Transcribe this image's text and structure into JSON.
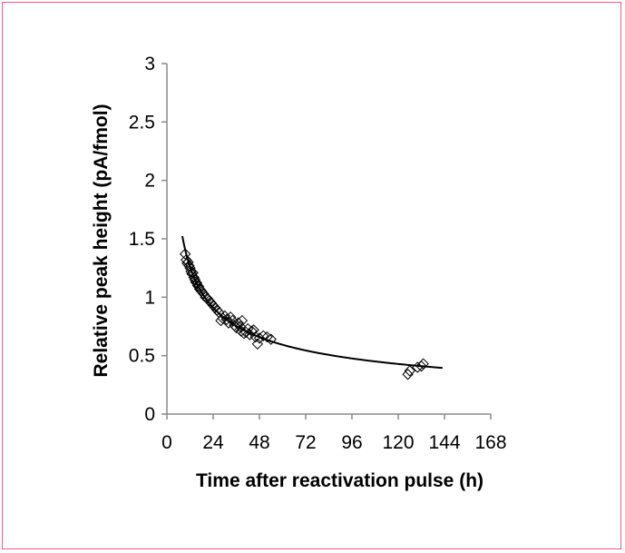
{
  "chart_data": {
    "type": "scatter",
    "xlabel": "Time after reactivation pulse (h)",
    "ylabel": "Relative peak height (pA/fmol)",
    "xlim": [
      0,
      168
    ],
    "ylim": [
      0,
      3
    ],
    "x_ticks": [
      "0",
      "24",
      "48",
      "72",
      "96",
      "120",
      "144",
      "168"
    ],
    "y_ticks": [
      "0",
      "0.5",
      "1",
      "1.5",
      "2",
      "2.5",
      "3"
    ],
    "grid": false,
    "legend": "none",
    "colors": {
      "axis": "#888888",
      "marker": "#000000",
      "fit": "#000000",
      "border": "#d46a7e"
    },
    "series": [
      {
        "kind": "scatter",
        "marker": "open-diamond",
        "points": [
          [
            9.5,
            1.37
          ],
          [
            10,
            1.32
          ],
          [
            10.5,
            1.29
          ],
          [
            11,
            1.3
          ],
          [
            11.5,
            1.27
          ],
          [
            12,
            1.25
          ],
          [
            12.5,
            1.22
          ],
          [
            13,
            1.2
          ],
          [
            13.5,
            1.21
          ],
          [
            14,
            1.17
          ],
          [
            14.5,
            1.15
          ],
          [
            15,
            1.13
          ],
          [
            15.5,
            1.12
          ],
          [
            16,
            1.1
          ],
          [
            16.5,
            1.09
          ],
          [
            17,
            1.07
          ],
          [
            17.5,
            1.06
          ],
          [
            18,
            1.05
          ],
          [
            19,
            1.03
          ],
          [
            20,
            1.0
          ],
          [
            21,
            0.99
          ],
          [
            22,
            0.97
          ],
          [
            23,
            0.95
          ],
          [
            24,
            0.93
          ],
          [
            25,
            0.91
          ],
          [
            26,
            0.89
          ],
          [
            27,
            0.87
          ],
          [
            28,
            0.8
          ],
          [
            29,
            0.82
          ],
          [
            30,
            0.84
          ],
          [
            31,
            0.81
          ],
          [
            32,
            0.78
          ],
          [
            33,
            0.83
          ],
          [
            34,
            0.8
          ],
          [
            35,
            0.76
          ],
          [
            36,
            0.74
          ],
          [
            37,
            0.78
          ],
          [
            38,
            0.75
          ],
          [
            38.5,
            0.71
          ],
          [
            39,
            0.8
          ],
          [
            40,
            0.69
          ],
          [
            41,
            0.7
          ],
          [
            42,
            0.73
          ],
          [
            43,
            0.68
          ],
          [
            44,
            0.71
          ],
          [
            45,
            0.72
          ],
          [
            46,
            0.66
          ],
          [
            47,
            0.6
          ],
          [
            48,
            0.65
          ],
          [
            50,
            0.67
          ],
          [
            52,
            0.66
          ],
          [
            54,
            0.64
          ],
          [
            125,
            0.34
          ],
          [
            126,
            0.37
          ],
          [
            130,
            0.4
          ],
          [
            132,
            0.41
          ],
          [
            133,
            0.43
          ]
        ]
      },
      {
        "kind": "fit-line",
        "equation": "y = 4.03 * x^-0.468",
        "coef": 4.03,
        "exponent": -0.468,
        "x_range": [
          8,
          143
        ]
      }
    ]
  }
}
